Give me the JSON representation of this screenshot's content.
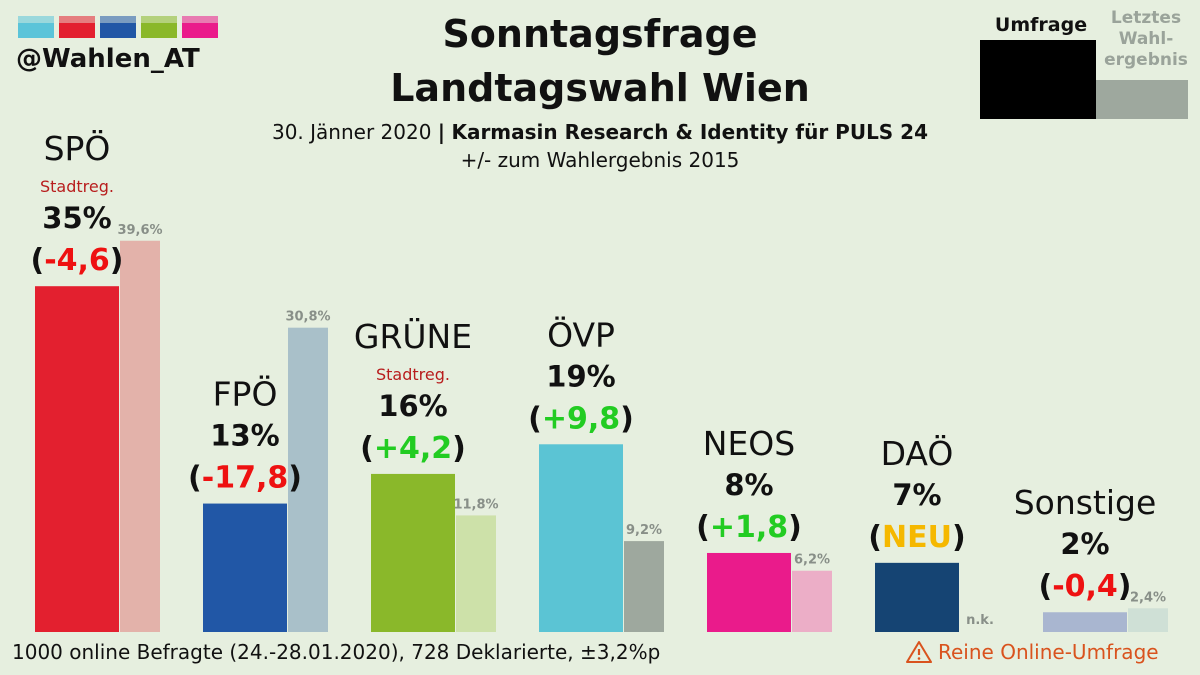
{
  "header": {
    "handle": "@Wahlen_AT",
    "title_line1": "Sonntagsfrage",
    "title_line2": "Landtagswahl Wien",
    "date": "30. Jänner 2020",
    "separator": "|",
    "pollster": "Karmasin Research & Identity für PULS 24",
    "comparison_note": "+/- zum Wahlergebnis 2015",
    "color_swatches": [
      "#5bc4d9",
      "#e3202f",
      "#2157a6",
      "#8ab82a",
      "#ea1b8b"
    ]
  },
  "legend": {
    "poll_label": "Umfrage",
    "previous_label": "Letztes Wahl-ergebnis",
    "previous_label_lines": [
      "Letztes",
      "Wahl-",
      "ergebnis"
    ],
    "poll_color": "#000000",
    "previous_color": "#9ea89e"
  },
  "footer": {
    "method_note": "1000 online Befragte (24.-28.01.2020), 728 Deklarierte, ±3,2%p",
    "warning": "Reine Online-Umfrage"
  },
  "chart_data": {
    "type": "bar",
    "title": "Sonntagsfrage Landtagswahl Wien",
    "categories": [
      "SPÖ",
      "FPÖ",
      "GRÜNE",
      "ÖVP",
      "NEOS",
      "DAÖ",
      "Sonstige"
    ],
    "series": [
      {
        "name": "Umfrage",
        "values": [
          35,
          13,
          16,
          19,
          8,
          7,
          2
        ]
      },
      {
        "name": "Letztes Wahlergebnis",
        "values": [
          39.6,
          30.8,
          11.8,
          9.2,
          6.2,
          null,
          2.4
        ]
      }
    ],
    "parties": [
      {
        "name": "SPÖ",
        "poll": 35,
        "poll_label": "35%",
        "change": "-4,6",
        "change_type": "neg",
        "previous": 39.6,
        "previous_label": "39,6%",
        "tag": "Stadtreg.",
        "color": "#e3202f",
        "prev_color": "#e3b2aa"
      },
      {
        "name": "FPÖ",
        "poll": 13,
        "poll_label": "13%",
        "change": "-17,8",
        "change_type": "neg",
        "previous": 30.8,
        "previous_label": "30,8%",
        "tag": "",
        "color": "#2157a6",
        "prev_color": "#a9c0c9"
      },
      {
        "name": "GRÜNE",
        "poll": 16,
        "poll_label": "16%",
        "change": "+4,2",
        "change_type": "pos",
        "previous": 11.8,
        "previous_label": "11,8%",
        "tag": "Stadtreg.",
        "color": "#8ab82a",
        "prev_color": "#cde1a9"
      },
      {
        "name": "ÖVP",
        "poll": 19,
        "poll_label": "19%",
        "change": "+9,8",
        "change_type": "pos",
        "previous": 9.2,
        "previous_label": "9,2%",
        "tag": "",
        "color": "#5bc4d4",
        "prev_color": "#9ea89e"
      },
      {
        "name": "NEOS",
        "poll": 8,
        "poll_label": "8%",
        "change": "+1,8",
        "change_type": "pos",
        "previous": 6.2,
        "previous_label": "6,2%",
        "tag": "",
        "color": "#ea1b8b",
        "prev_color": "#ecaec7"
      },
      {
        "name": "DAÖ",
        "poll": 7,
        "poll_label": "7%",
        "change": "NEU",
        "change_type": "new",
        "previous": null,
        "previous_label": "n.k.",
        "tag": "",
        "color": "#154473",
        "prev_color": "#9ea89e"
      },
      {
        "name": "Sonstige",
        "poll": 2,
        "poll_label": "2%",
        "change": "-0,4",
        "change_type": "neg",
        "previous": 2.4,
        "previous_label": "2,4%",
        "tag": "",
        "color": "#a9b6d0",
        "prev_color": "#cfe0d6"
      }
    ],
    "change_colors": {
      "neg": "#ee1111",
      "pos": "#22cc22",
      "new": "#f5b800"
    },
    "ylim": [
      0,
      40
    ],
    "grid": false,
    "xlabel": "",
    "ylabel": ""
  }
}
